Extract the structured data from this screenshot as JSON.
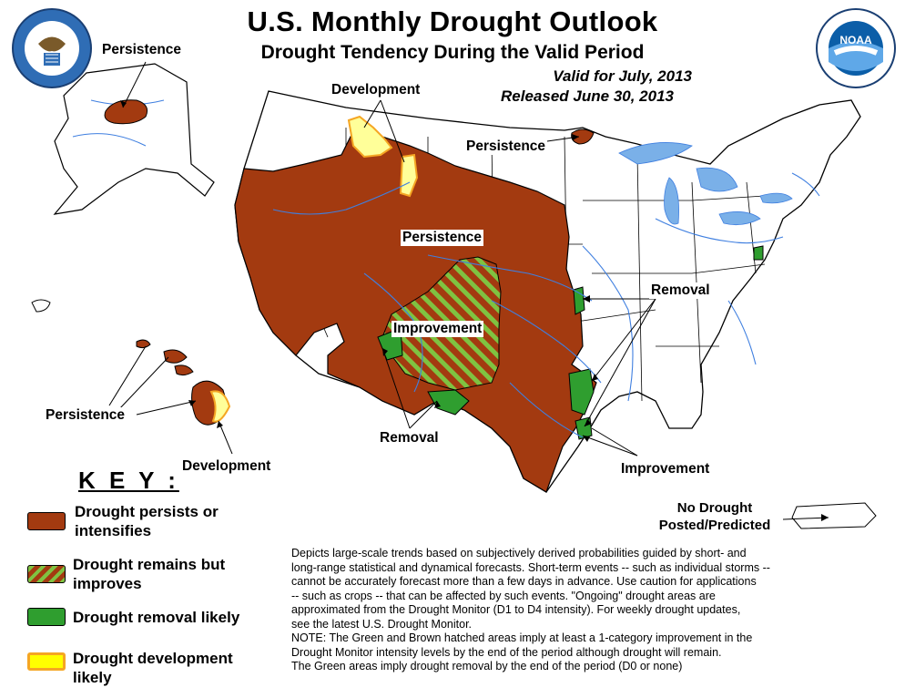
{
  "header": {
    "title": "U.S. Monthly Drought Outlook",
    "subtitle": "Drought Tendency During the Valid Period",
    "valid": "Valid for July, 2013",
    "released": "Released June 30, 2013"
  },
  "logos": {
    "left_icon": "department-of-commerce-seal",
    "left_text": "DEPARTMENT OF COMMERCE · UNITED STATES OF AMERICA",
    "right_icon": "noaa-logo",
    "right_text": "NOAA",
    "right_ring_text": "NATIONAL OCEANIC AND ATMOSPHERIC ADMINISTRATION · U.S. DEPARTMENT OF COMMERCE"
  },
  "map_labels": {
    "alaska": "Persistence",
    "development_north": "Development",
    "persistence_north": "Persistence",
    "persistence_central": "Persistence",
    "improvement_central": "Improvement",
    "removal_east": "Removal",
    "removal_south": "Removal",
    "improvement_south": "Improvement",
    "hawaii_persistence": "Persistence",
    "hawaii_development": "Development",
    "puerto_rico": "No Drought\nPosted/Predicted"
  },
  "key": {
    "title": "K E Y :",
    "items": [
      {
        "label": "Drought persists or\nintensifies",
        "color": "#a33a10"
      },
      {
        "label": "Drought remains but\nimproves",
        "color": "#a33a10",
        "hatch": "#7fc241"
      },
      {
        "label": "Drought removal likely",
        "color": "#2f9e2f"
      },
      {
        "label": "Drought development\nlikely",
        "color": "#ffff99",
        "border": "#f5a623"
      }
    ]
  },
  "description": [
    "Depicts large-scale trends based on subjectively derived probabilities guided by short- and",
    "long-range statistical and dynamical forecasts. Short-term events -- such as individual storms --",
    "cannot be accurately forecast more than a few days in advance. Use caution for applications",
    "-- such as crops -- that can be affected by such events. \"Ongoing\" drought areas are",
    "approximated from the Drought Monitor (D1 to D4 intensity). For weekly drought updates,",
    "see the latest U.S. Drought Monitor.",
    "NOTE: The Green and Brown hatched areas imply at least a 1-category improvement in the",
    "Drought Monitor intensity levels by the end of the period although drought will remain.",
    "The Green areas imply drought removal by the end of the period (D0 or none)"
  ],
  "colors": {
    "persist": "#a33a10",
    "improve_hatch": "#7fc241",
    "removal": "#2f9e2f",
    "development": "#ffff99",
    "development_border": "#f5a623",
    "rivers": "#3f7fe0",
    "lakes": "#7ab0e8"
  }
}
